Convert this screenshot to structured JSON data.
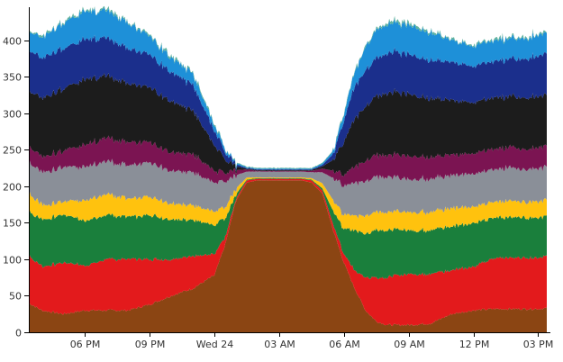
{
  "chart_data": {
    "type": "area",
    "stacked": true,
    "grid": false,
    "legend": "none",
    "title": "",
    "xlabel": "",
    "ylabel": "",
    "ylim": [
      0,
      445
    ],
    "y_ticks": [
      0,
      50,
      100,
      150,
      200,
      250,
      300,
      350,
      400
    ],
    "x_ticks": [
      {
        "hour": 18,
        "label": "06 PM"
      },
      {
        "hour": 21,
        "label": "09 PM"
      },
      {
        "hour": 24,
        "label": "Wed 24"
      },
      {
        "hour": 27,
        "label": "03 AM"
      },
      {
        "hour": 30,
        "label": "06 AM"
      },
      {
        "hour": 33,
        "label": "09 AM"
      },
      {
        "hour": 36,
        "label": "12 PM"
      },
      {
        "hour": 39,
        "label": "03 PM"
      }
    ],
    "x": [
      15.4,
      16,
      17,
      18,
      19,
      20,
      21,
      22,
      23,
      24,
      24.5,
      25,
      25.5,
      26,
      27,
      28,
      28.5,
      29,
      29.5,
      30,
      30.5,
      31,
      31.5,
      32,
      33,
      34,
      35,
      36,
      37,
      38,
      39,
      39.4
    ],
    "series": [
      {
        "color": "#8B4513",
        "values": [
          40,
          30,
          25,
          30,
          30,
          30,
          38,
          50,
          60,
          78,
          120,
          180,
          205,
          208,
          208,
          208,
          205,
          190,
          140,
          95,
          60,
          30,
          15,
          10,
          10,
          12,
          25,
          30,
          32,
          32,
          32,
          33
        ]
      },
      {
        "color": "#E31A1C",
        "values": [
          65,
          60,
          70,
          62,
          70,
          70,
          62,
          50,
          45,
          28,
          10,
          3,
          3,
          2,
          2,
          2,
          3,
          4,
          8,
          12,
          25,
          45,
          60,
          65,
          70,
          68,
          60,
          60,
          70,
          70,
          70,
          72
        ]
      },
      {
        "color": "#1A7F3C",
        "values": [
          60,
          65,
          65,
          62,
          60,
          58,
          60,
          55,
          50,
          40,
          25,
          6,
          1,
          1,
          1,
          1,
          1,
          3,
          18,
          35,
          55,
          60,
          65,
          65,
          60,
          60,
          60,
          60,
          55,
          55,
          55,
          55
        ]
      },
      {
        "color": "#FFC20E",
        "values": [
          25,
          20,
          18,
          28,
          28,
          25,
          25,
          22,
          20,
          18,
          16,
          8,
          3,
          1,
          1,
          1,
          2,
          7,
          15,
          20,
          20,
          25,
          25,
          25,
          25,
          25,
          25,
          22,
          22,
          22,
          22,
          22
        ]
      },
      {
        "color": "#8A8F98",
        "values": [
          43,
          45,
          47,
          46,
          45,
          45,
          47,
          45,
          45,
          40,
          35,
          18,
          8,
          8,
          8,
          8,
          8,
          15,
          30,
          40,
          45,
          47,
          48,
          48,
          45,
          45,
          45,
          45,
          45,
          45,
          45,
          45
        ]
      },
      {
        "color": "#7B1452",
        "values": [
          22,
          22,
          22,
          30,
          32,
          32,
          28,
          25,
          25,
          16,
          12,
          7,
          3,
          1,
          1,
          1,
          2,
          5,
          10,
          15,
          22,
          28,
          30,
          30,
          32,
          30,
          28,
          28,
          28,
          28,
          28,
          28
        ]
      },
      {
        "color": "#1C1C1C",
        "values": [
          75,
          80,
          85,
          90,
          85,
          80,
          75,
          70,
          60,
          35,
          18,
          5,
          1,
          1,
          1,
          1,
          1,
          3,
          15,
          45,
          65,
          75,
          80,
          85,
          85,
          80,
          75,
          70,
          70,
          70,
          70,
          70
        ]
      },
      {
        "color": "#1B2F8C",
        "values": [
          55,
          55,
          55,
          55,
          52,
          48,
          45,
          40,
          35,
          20,
          10,
          3,
          1,
          1,
          1,
          1,
          1,
          2,
          8,
          30,
          45,
          50,
          52,
          55,
          55,
          52,
          52,
          50,
          50,
          52,
          55,
          58
        ]
      },
      {
        "color": "#1E90D8",
        "values": [
          25,
          28,
          35,
          38,
          38,
          35,
          25,
          20,
          15,
          8,
          4,
          2,
          1,
          1,
          1,
          1,
          1,
          2,
          4,
          10,
          20,
          32,
          38,
          40,
          40,
          38,
          30,
          28,
          28,
          28,
          28,
          28
        ]
      },
      {
        "color": "#5FB3A0",
        "values": [
          2,
          2,
          2,
          2,
          2,
          2,
          2,
          2,
          2,
          2,
          1,
          1,
          1,
          1,
          1,
          1,
          1,
          1,
          1,
          2,
          2,
          2,
          2,
          3,
          3,
          2,
          2,
          2,
          2,
          2,
          2,
          2
        ]
      }
    ]
  }
}
